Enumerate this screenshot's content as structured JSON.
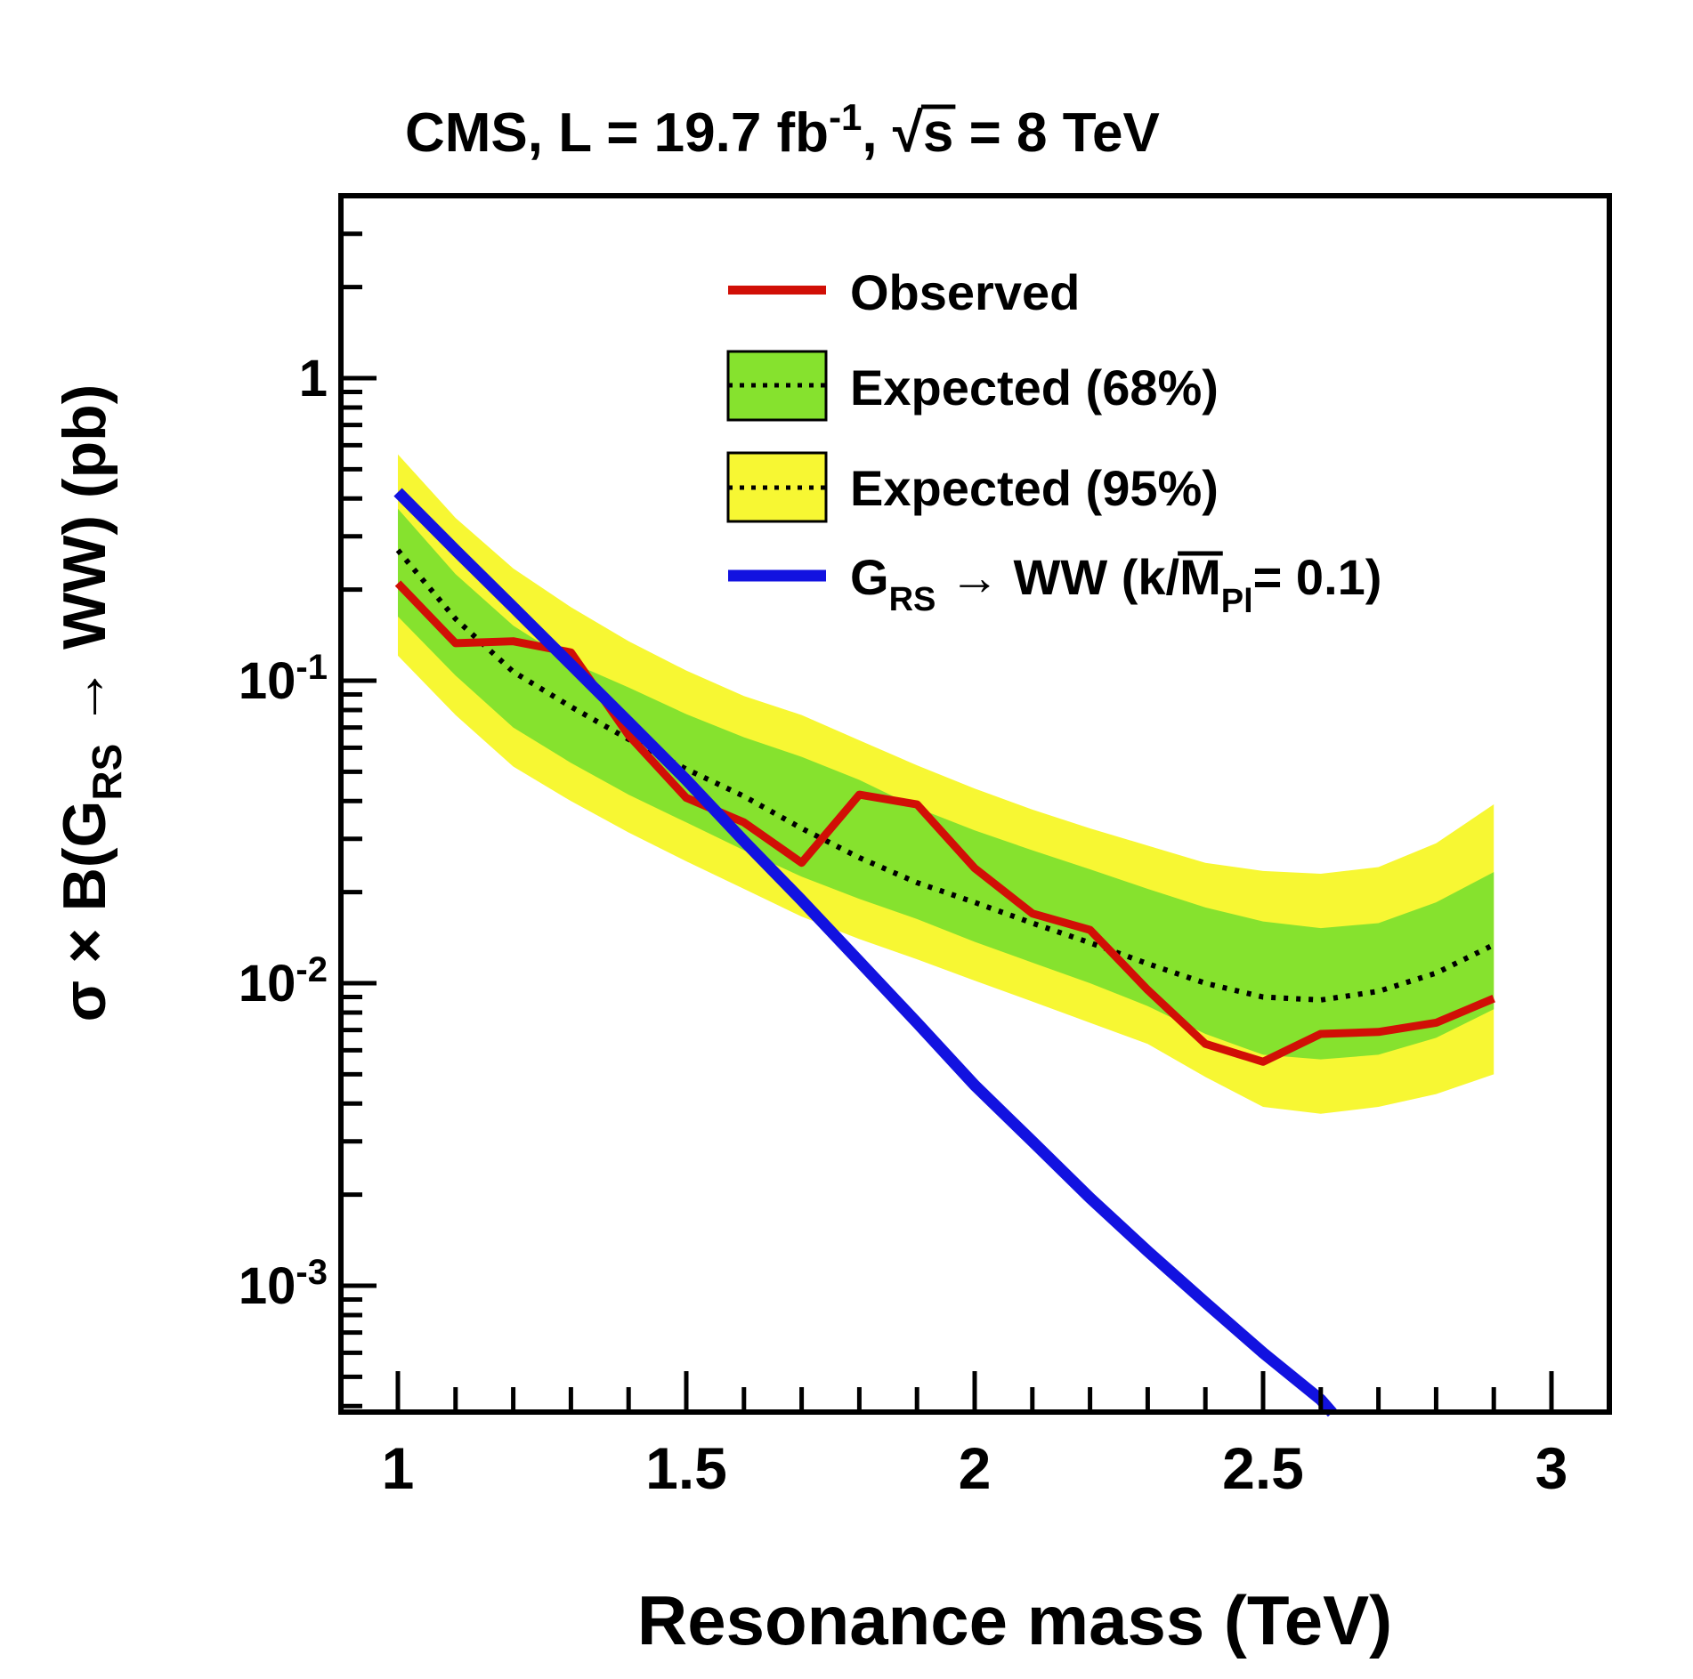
{
  "title": {
    "part1": "CMS, L = 19.7 fb",
    "sup": "-1",
    "part2": ", ",
    "sqrt": "√",
    "s": "s",
    "part3": " = 8 TeV"
  },
  "axes": {
    "x_label": "Resonance mass (TeV)",
    "y_label": {
      "pre": "σ × B(G",
      "sub": "RS",
      "post": " → WW) (pb)"
    },
    "x_ticks": [
      {
        "label": "1",
        "value": 1.0
      },
      {
        "label": "1.5",
        "value": 1.5
      },
      {
        "label": "2",
        "value": 2.0
      },
      {
        "label": "2.5",
        "value": 2.5
      },
      {
        "label": "3",
        "value": 3.0
      }
    ],
    "y_ticks": [
      {
        "main": "1",
        "exp": "",
        "value": 1
      },
      {
        "main": "10",
        "exp": "-1",
        "value": 0.1
      },
      {
        "main": "10",
        "exp": "-2",
        "value": 0.01
      },
      {
        "main": "10",
        "exp": "-3",
        "value": 0.001
      }
    ]
  },
  "legend": {
    "observed": "Observed",
    "expected68": "Expected (68%)",
    "expected95": "Expected (95%)",
    "theory": {
      "g": "G",
      "g_sub": "RS",
      "mid": " → WW (k/",
      "m": "M",
      "m_sub": "Pl",
      "end": "= 0.1)"
    }
  },
  "colors": {
    "observed": "#d10f06",
    "expected": "#000000",
    "band68": "#86e22e",
    "band95": "#f7f733",
    "theory": "#1212e0",
    "axis": "#000000"
  },
  "chart_data": {
    "type": "line",
    "title": "CMS, L = 19.7 fb^-1, sqrt(s) = 8 TeV",
    "xlabel": "Resonance mass (TeV)",
    "ylabel": "sigma x B(G_RS -> WW) (pb)",
    "log_y": true,
    "xlim": [
      0.9,
      3.1
    ],
    "ylim": [
      0.00038,
      4.0
    ],
    "legend_position": "top-right",
    "grid": false,
    "x": [
      1.0,
      1.1,
      1.2,
      1.3,
      1.4,
      1.5,
      1.6,
      1.7,
      1.8,
      1.9,
      2.0,
      2.1,
      2.2,
      2.3,
      2.4,
      2.5,
      2.6,
      2.7,
      2.8,
      2.9
    ],
    "observed": [
      0.21,
      0.133,
      0.135,
      0.124,
      0.066,
      0.041,
      0.034,
      0.025,
      0.042,
      0.039,
      0.024,
      0.017,
      0.015,
      0.0095,
      0.0063,
      0.0055,
      0.0068,
      0.0069,
      0.0074,
      0.0089
    ],
    "expected_median": [
      0.27,
      0.16,
      0.107,
      0.082,
      0.064,
      0.051,
      0.0415,
      0.0325,
      0.026,
      0.0215,
      0.0185,
      0.0158,
      0.0136,
      0.0116,
      0.01,
      0.009,
      0.0088,
      0.0094,
      0.0108,
      0.0134
    ],
    "band68_high": [
      0.37,
      0.225,
      0.152,
      0.115,
      0.095,
      0.0775,
      0.065,
      0.056,
      0.047,
      0.038,
      0.032,
      0.0275,
      0.0238,
      0.0205,
      0.0178,
      0.016,
      0.0152,
      0.0158,
      0.0185,
      0.0233
    ],
    "band68_low": [
      0.163,
      0.104,
      0.07,
      0.0535,
      0.042,
      0.034,
      0.0275,
      0.0225,
      0.019,
      0.0163,
      0.0137,
      0.0117,
      0.01,
      0.0084,
      0.0068,
      0.0058,
      0.0056,
      0.0058,
      0.0066,
      0.0082
    ],
    "band95_high": [
      0.56,
      0.345,
      0.235,
      0.175,
      0.135,
      0.108,
      0.089,
      0.077,
      0.0635,
      0.0525,
      0.044,
      0.0375,
      0.0325,
      0.0285,
      0.025,
      0.0235,
      0.023,
      0.0242,
      0.029,
      0.039
    ],
    "band95_low": [
      0.121,
      0.077,
      0.052,
      0.04,
      0.0315,
      0.0253,
      0.0205,
      0.0166,
      0.014,
      0.012,
      0.0102,
      0.0087,
      0.0074,
      0.0063,
      0.0049,
      0.0039,
      0.0037,
      0.0039,
      0.0043,
      0.005
    ],
    "theory_x": [
      1.0,
      1.1,
      1.2,
      1.3,
      1.4,
      1.5,
      1.6,
      1.7,
      1.8,
      1.9,
      2.0,
      2.1,
      2.2,
      2.3,
      2.4,
      2.5,
      2.6,
      2.62
    ],
    "theory_y": [
      0.42,
      0.27,
      0.175,
      0.113,
      0.073,
      0.047,
      0.0295,
      0.0188,
      0.0118,
      0.0074,
      0.0046,
      0.003,
      0.00195,
      0.0013,
      0.00088,
      0.0006,
      0.00042,
      0.00038
    ]
  }
}
